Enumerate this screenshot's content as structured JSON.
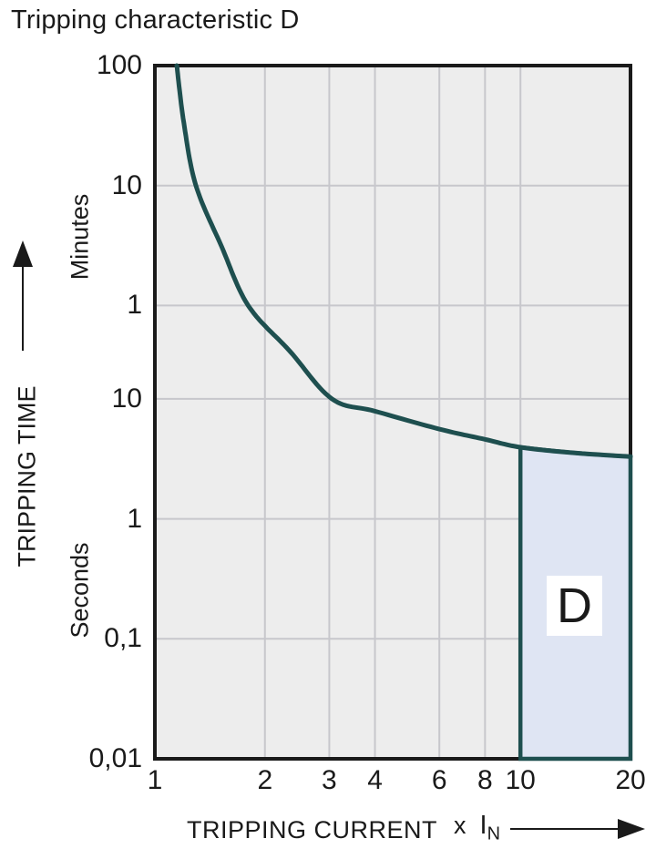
{
  "title": "Tripping characteristic D",
  "y_axis": {
    "label": "TRIPPING TIME",
    "unit_upper": "Minutes",
    "unit_lower": "Seconds"
  },
  "x_axis": {
    "label": "TRIPPING CURRENT",
    "unit_prefix": "x",
    "unit_symbol": "I",
    "unit_sub": "N"
  },
  "region_label": "D",
  "colors": {
    "curve": "#1e4f4f",
    "region_fill": "#dfe5f3",
    "region_border": "#1e4f4f",
    "plot_bg": "#ededed",
    "grid": "#c7c7cc",
    "plot_border": "#1a1a1a",
    "text": "#1a1a1a"
  },
  "chart_data": {
    "type": "line",
    "title": "Tripping characteristic D",
    "xlabel": "TRIPPING CURRENT (x IN)",
    "ylabel": "TRIPPING TIME",
    "x_scale": "log",
    "y_scale": "log",
    "x_range_multiple_of_In": [
      1,
      20
    ],
    "y_range_seconds": [
      0.01,
      6000
    ],
    "x_ticks": [
      {
        "value": 1,
        "label": "1"
      },
      {
        "value": 2,
        "label": "2"
      },
      {
        "value": 3,
        "label": "3"
      },
      {
        "value": 4,
        "label": "4"
      },
      {
        "value": 6,
        "label": "6"
      },
      {
        "value": 8,
        "label": "8"
      },
      {
        "value": 10,
        "label": "10"
      },
      {
        "value": 20,
        "label": "20"
      }
    ],
    "y_ticks": [
      {
        "seconds": 6000,
        "label": "100",
        "unit": "minutes"
      },
      {
        "seconds": 600,
        "label": "10",
        "unit": "minutes"
      },
      {
        "seconds": 60,
        "label": "1",
        "unit": "minutes"
      },
      {
        "seconds": 10,
        "label": "10",
        "unit": "seconds"
      },
      {
        "seconds": 1,
        "label": "1",
        "unit": "seconds"
      },
      {
        "seconds": 0.1,
        "label": "0,1",
        "unit": "seconds"
      },
      {
        "seconds": 0.01,
        "label": "0,01",
        "unit": "seconds"
      }
    ],
    "grid": {
      "vertical_at_multiples": [
        2,
        3,
        4,
        6,
        8,
        10
      ],
      "horizontal_at_seconds": [
        600,
        60,
        10,
        1,
        0.1
      ]
    },
    "series": [
      {
        "name": "tripping-curve",
        "points_multiple_vs_seconds": [
          [
            1.148,
            6000
          ],
          [
            1.2,
            2000
          ],
          [
            1.295,
            600
          ],
          [
            1.52,
            188
          ],
          [
            1.8,
            60
          ],
          [
            2.34,
            25
          ],
          [
            3.05,
            10
          ],
          [
            4,
            7.9
          ],
          [
            6,
            5.6
          ],
          [
            8,
            4.6
          ],
          [
            10,
            3.95
          ],
          [
            14,
            3.55
          ],
          [
            20,
            3.3
          ]
        ]
      }
    ],
    "region": {
      "label": "D",
      "x_range_multiple": [
        10,
        20
      ],
      "bottom_seconds": 0.01,
      "top_follows_curve_seconds": [
        [
          10,
          3.95
        ],
        [
          14,
          3.55
        ],
        [
          20,
          3.3
        ]
      ]
    },
    "legend": "none"
  }
}
